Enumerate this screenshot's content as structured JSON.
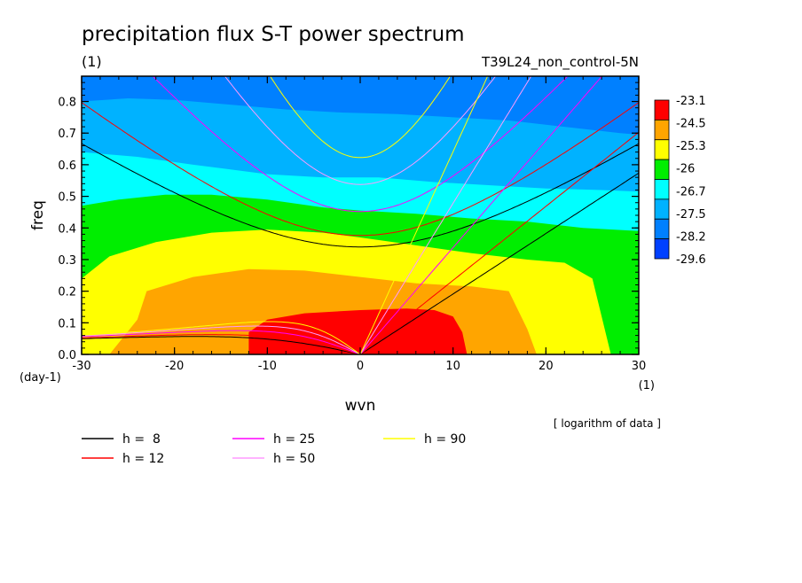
{
  "chart_data": {
    "type": "heatmap",
    "title": "precipitation flux S-T power spectrum",
    "subtitle_left": "(1)",
    "subtitle_right": "T39L24_non_control-5N",
    "xlabel": "wvn",
    "ylabel": "freq",
    "x_unit": "(1)",
    "y_unit": "(day-1)",
    "xlim": [
      -30,
      30
    ],
    "ylim": [
      0,
      0.88
    ],
    "x_ticks": [
      "-30",
      "-20",
      "-10",
      "0",
      "10",
      "20",
      "30"
    ],
    "x_tick_values": [
      -30,
      -20,
      -10,
      0,
      10,
      20,
      30
    ],
    "y_ticks": [
      "0.0",
      "0.1",
      "0.2",
      "0.3",
      "0.4",
      "0.5",
      "0.6",
      "0.7",
      "0.8"
    ],
    "y_tick_values": [
      0,
      0.1,
      0.2,
      0.3,
      0.4,
      0.5,
      0.6,
      0.7,
      0.8
    ],
    "note": "[ logarithm of data ]",
    "colorbar": {
      "labels": [
        "-23.1",
        "-24.5",
        "-25.3",
        "-26",
        "-26.7",
        "-27.5",
        "-28.2",
        "-29.6"
      ],
      "colors": [
        "#ff0000",
        "#ffa500",
        "#ffff00",
        "#00ee00",
        "#00ffff",
        "#00b2ff",
        "#0080ff",
        "#0040ff"
      ]
    },
    "contour_levels": [
      {
        "level": 1,
        "color": "#ffa500",
        "points": [
          [
            -30,
            0.0
          ],
          [
            -27,
            0.0
          ],
          [
            -24,
            0.11
          ],
          [
            -23,
            0.2
          ],
          [
            -18,
            0.245
          ],
          [
            -12,
            0.27
          ],
          [
            -6,
            0.265
          ],
          [
            0,
            0.245
          ],
          [
            6,
            0.225
          ],
          [
            12,
            0.215
          ],
          [
            16,
            0.2
          ],
          [
            18,
            0.08
          ],
          [
            19,
            0.0
          ]
        ]
      },
      {
        "level": 2,
        "color": "#ffff00",
        "points": [
          [
            -30,
            0.24
          ],
          [
            -27,
            0.31
          ],
          [
            -22,
            0.355
          ],
          [
            -16,
            0.385
          ],
          [
            -10,
            0.395
          ],
          [
            -4,
            0.385
          ],
          [
            0,
            0.37
          ],
          [
            6,
            0.345
          ],
          [
            12,
            0.32
          ],
          [
            18,
            0.3
          ],
          [
            22,
            0.29
          ],
          [
            25,
            0.24
          ],
          [
            27,
            0.0
          ]
        ]
      },
      {
        "level": 3,
        "color": "#00ee00",
        "points": [
          [
            -30,
            0.47
          ],
          [
            -26,
            0.49
          ],
          [
            -21,
            0.505
          ],
          [
            -16,
            0.505
          ],
          [
            -10,
            0.49
          ],
          [
            -4,
            0.465
          ],
          [
            0,
            0.455
          ],
          [
            6,
            0.445
          ],
          [
            12,
            0.43
          ],
          [
            18,
            0.42
          ],
          [
            24,
            0.4
          ],
          [
            30,
            0.39
          ]
        ]
      },
      {
        "level": 4,
        "color": "#00ffff",
        "points": [
          [
            -30,
            0.64
          ],
          [
            -24,
            0.625
          ],
          [
            -18,
            0.6
          ],
          [
            -10,
            0.57
          ],
          [
            -4,
            0.56
          ],
          [
            2,
            0.56
          ],
          [
            8,
            0.545
          ],
          [
            14,
            0.535
          ],
          [
            20,
            0.525
          ],
          [
            26,
            0.52
          ],
          [
            30,
            0.515
          ]
        ]
      },
      {
        "level": 5,
        "color": "#00b2ff",
        "points": [
          [
            -30,
            0.8
          ],
          [
            -25,
            0.81
          ],
          [
            -20,
            0.805
          ],
          [
            -14,
            0.79
          ],
          [
            -8,
            0.775
          ],
          [
            -2,
            0.765
          ],
          [
            4,
            0.76
          ],
          [
            10,
            0.75
          ],
          [
            16,
            0.74
          ],
          [
            22,
            0.72
          ],
          [
            28,
            0.7
          ],
          [
            30,
            0.695
          ]
        ]
      },
      {
        "level": 6,
        "color": "#0080ff",
        "points": [
          [
            -30,
            0.885
          ],
          [
            30,
            0.885
          ]
        ]
      }
    ],
    "red_core": [
      [
        -12,
        0.0
      ],
      [
        -12,
        0.07
      ],
      [
        -10,
        0.11
      ],
      [
        -6,
        0.13
      ],
      [
        0,
        0.14
      ],
      [
        5,
        0.145
      ],
      [
        8,
        0.14
      ],
      [
        10,
        0.12
      ],
      [
        11,
        0.07
      ],
      [
        11.5,
        0.0
      ]
    ],
    "series": [
      {
        "name": "h =  8",
        "h": 8,
        "color": "#000000"
      },
      {
        "name": "h = 12",
        "h": 12,
        "color": "#ff0000"
      },
      {
        "name": "h = 25",
        "h": 25,
        "color": "#ff00ff"
      },
      {
        "name": "h = 50",
        "h": 50,
        "color": "#ff9aff"
      },
      {
        "name": "h = 90",
        "h": 90,
        "color": "#ffff00"
      }
    ],
    "legend_placement": "bottom",
    "grid": false
  }
}
